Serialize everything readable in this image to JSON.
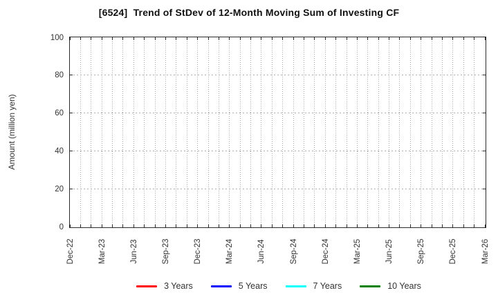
{
  "chart_data": {
    "type": "line",
    "title": "[6524]  Trend of StDev of 12-Month Moving Sum of Investing CF",
    "ylabel": "Amount (million yen)",
    "ylim": [
      0,
      100
    ],
    "yticks": [
      0,
      20,
      40,
      60,
      80,
      100
    ],
    "x_tick_labels": [
      "Dec-22",
      "Mar-23",
      "Jun-23",
      "Sep-23",
      "Dec-23",
      "Mar-24",
      "Jun-24",
      "Sep-24",
      "Dec-24",
      "Mar-25",
      "Jun-25",
      "Sep-25",
      "Dec-25",
      "Mar-26"
    ],
    "x_months_span": 39,
    "x_tick_step_months": 3,
    "grid": true,
    "legend_position": "bottom",
    "series": [
      {
        "name": "3 Years",
        "color": "#ff0000",
        "values": []
      },
      {
        "name": "5 Years",
        "color": "#0000ff",
        "values": []
      },
      {
        "name": "7 Years",
        "color": "#00ffff",
        "values": []
      },
      {
        "name": "10 Years",
        "color": "#008000",
        "values": []
      }
    ],
    "colors": {
      "grid": "#aaaaaa",
      "axis_border": "#2b2b2b",
      "text": "#333333",
      "title_text": "#111111"
    }
  }
}
